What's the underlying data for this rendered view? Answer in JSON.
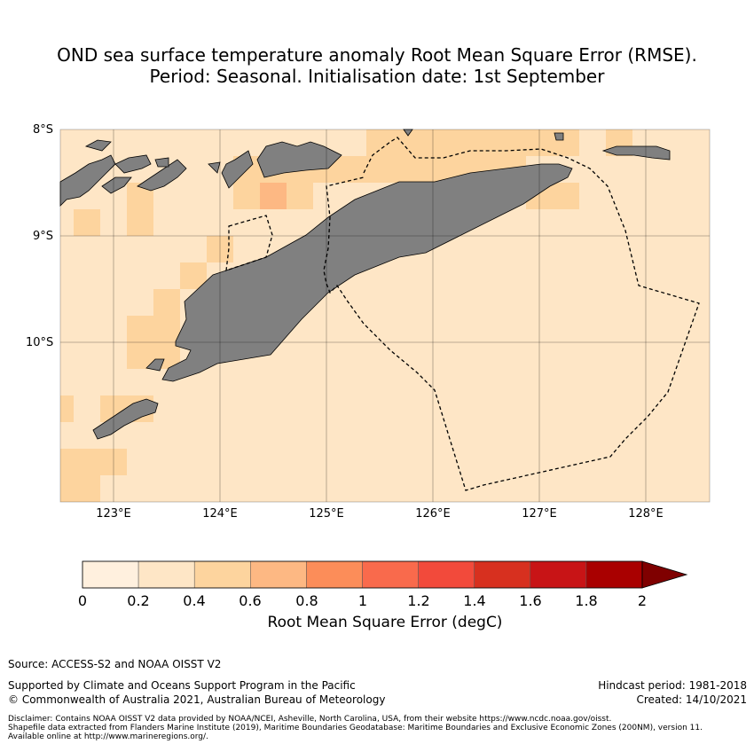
{
  "title": {
    "line1": "OND sea surface temperature anomaly Root Mean Square Error (RMSE).",
    "line2": "Period: Seasonal. Initialisation date: 1st September"
  },
  "map": {
    "lat_labels": [
      "8°S",
      "9°S",
      "10°S"
    ],
    "lon_labels": [
      "123°E",
      "124°E",
      "125°E",
      "126°E",
      "127°E",
      "128°E"
    ],
    "land_color": "#808080",
    "ocean_base_color": "#fee6c6"
  },
  "colorbar": {
    "ticks": [
      "0",
      "0.2",
      "0.4",
      "0.6",
      "0.8",
      "1",
      "1.2",
      "1.4",
      "1.6",
      "1.8",
      "2"
    ],
    "colors": [
      "#fff0de",
      "#fee6c6",
      "#fdd49e",
      "#fdb883",
      "#fc8d59",
      "#f96a4c",
      "#f24a3b",
      "#d7301f",
      "#c81416",
      "#a90000",
      "#7f0000"
    ],
    "label": "Root Mean Square Error (degC)"
  },
  "footer": {
    "source": "Source: ACCESS-S2 and NOAA OISST V2",
    "support": "Supported by Climate and Oceans Support Program in the Pacific",
    "copyright": "© Commonwealth of Australia 2021, Australian Bureau of Meteorology",
    "hindcast": "Hindcast period: 1981-2018",
    "created": "Created: 14/10/2021",
    "disclaimer1": "Disclaimer: Contains NOAA OISST V2 data provided by NOAA/NCEI, Asheville, North Carolina, USA, from their website https://www.ncdc.noaa.gov/oisst.",
    "disclaimer2": "Shapefile data extracted from Flanders Marine Institute (2019), Maritime Boundaries Geodatabase: Maritime Boundaries and Exclusive Economic Zones (200NM), version 11.",
    "disclaimer3": "Available online at http://www.marineregions.org/."
  }
}
